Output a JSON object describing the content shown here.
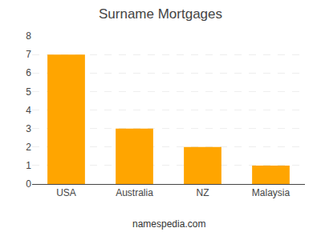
{
  "chart_data": {
    "type": "bar",
    "title": "Surname Mortgages",
    "categories": [
      "USA",
      "Australia",
      "NZ",
      "Malaysia"
    ],
    "values": [
      7,
      3,
      2,
      1
    ],
    "color": "#FFA500",
    "ylim": [
      0,
      8
    ],
    "yticks": [
      0,
      1,
      2,
      3,
      4,
      5,
      6,
      7,
      8
    ],
    "grid": true,
    "annotations": [
      "namespedia.com"
    ]
  }
}
